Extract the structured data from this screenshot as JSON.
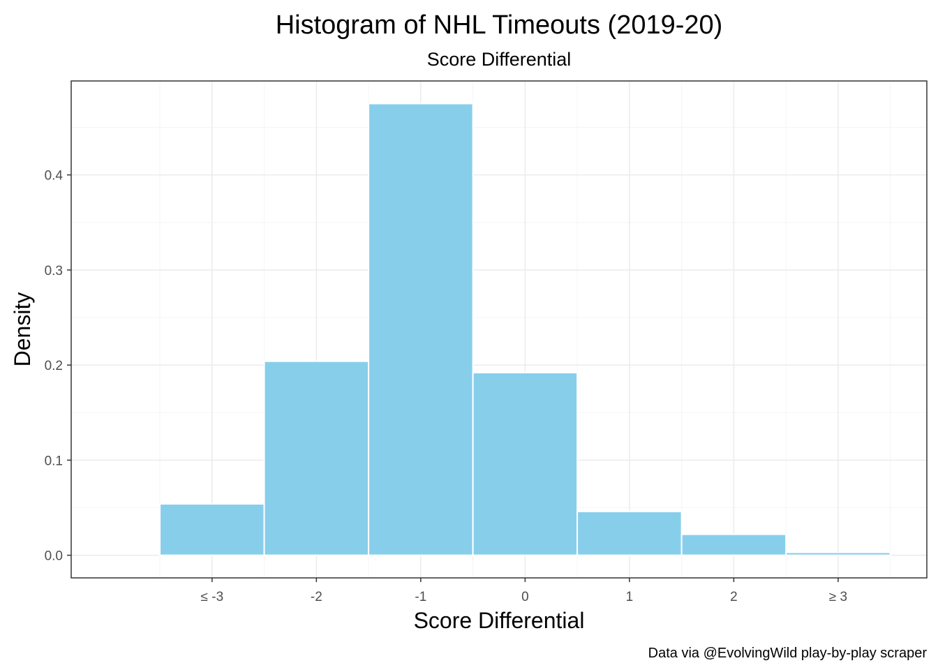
{
  "chart_data": {
    "type": "bar",
    "title": "Histogram of NHL Timeouts (2019-20)",
    "subtitle": "Score Differential",
    "xlabel": "Score Differential",
    "ylabel": "Density",
    "caption": "Data via @EvolvingWild play-by-play scraper",
    "categories": [
      "≤ -3",
      "-2",
      "-1",
      "0",
      "1",
      "2",
      "≥ 3"
    ],
    "values": [
      0.054,
      0.204,
      0.475,
      0.192,
      0.046,
      0.022,
      0.003
    ],
    "yticks": [
      {
        "value": 0.0,
        "label": "0.0"
      },
      {
        "value": 0.1,
        "label": "0.1"
      },
      {
        "value": 0.2,
        "label": "0.2"
      },
      {
        "value": 0.3,
        "label": "0.3"
      },
      {
        "value": 0.4,
        "label": "0.4"
      }
    ],
    "ylim": [
      -0.0238,
      0.4988
    ],
    "grid": true,
    "colors": {
      "bar_fill": "#87CEEB",
      "bar_outline": "#ffffff",
      "grid_major": "#ebebeb",
      "grid_minor": "#f5f5f5",
      "panel_border": "#333333"
    }
  }
}
